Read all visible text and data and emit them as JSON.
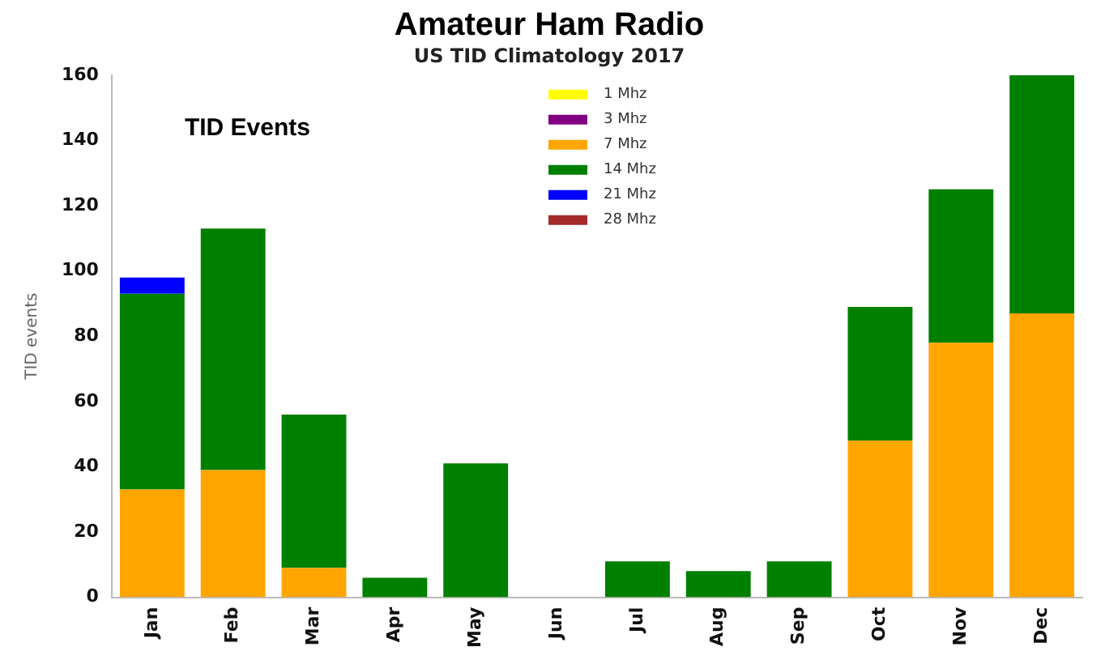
{
  "chart_data": {
    "type": "bar",
    "title": "Amateur Ham Radio",
    "subtitle": "US TID Climatology 2017",
    "ylabel": "TID events",
    "annotations": [
      "TID Events"
    ],
    "categories": [
      "Jan",
      "Feb",
      "Mar",
      "Apr",
      "May",
      "Jun",
      "Jul",
      "Aug",
      "Sep",
      "Oct",
      "Nov",
      "Dec"
    ],
    "stacked": true,
    "ylim": [
      0,
      160
    ],
    "yticks": [
      0,
      20,
      40,
      60,
      80,
      100,
      120,
      140,
      160
    ],
    "grid": false,
    "legend": "top",
    "series": [
      {
        "name": "1 Mhz",
        "color": "#ffff00",
        "values": [
          0,
          0,
          0,
          0,
          0,
          0,
          0,
          0,
          0,
          0,
          0,
          0
        ]
      },
      {
        "name": "3 Mhz",
        "color": "#800080",
        "values": [
          0,
          0,
          0,
          0,
          0,
          0,
          0,
          0,
          0,
          0,
          0,
          0
        ]
      },
      {
        "name": "7 Mhz",
        "color": "#ffa500",
        "values": [
          33,
          39,
          9,
          0,
          0,
          0,
          0,
          0,
          0,
          48,
          78,
          87
        ]
      },
      {
        "name": "14 Mhz",
        "color": "#008000",
        "values": [
          60,
          74,
          47,
          6,
          41,
          0,
          11,
          8,
          11,
          41,
          47,
          73
        ]
      },
      {
        "name": "21 Mhz",
        "color": "#0000ff",
        "values": [
          5,
          0,
          0,
          0,
          0,
          0,
          0,
          0,
          0,
          0,
          0,
          0
        ]
      },
      {
        "name": "28 Mhz",
        "color": "#a52a2a",
        "values": [
          0,
          0,
          0,
          0,
          0,
          0,
          0,
          0,
          0,
          0,
          0,
          0
        ]
      }
    ]
  }
}
